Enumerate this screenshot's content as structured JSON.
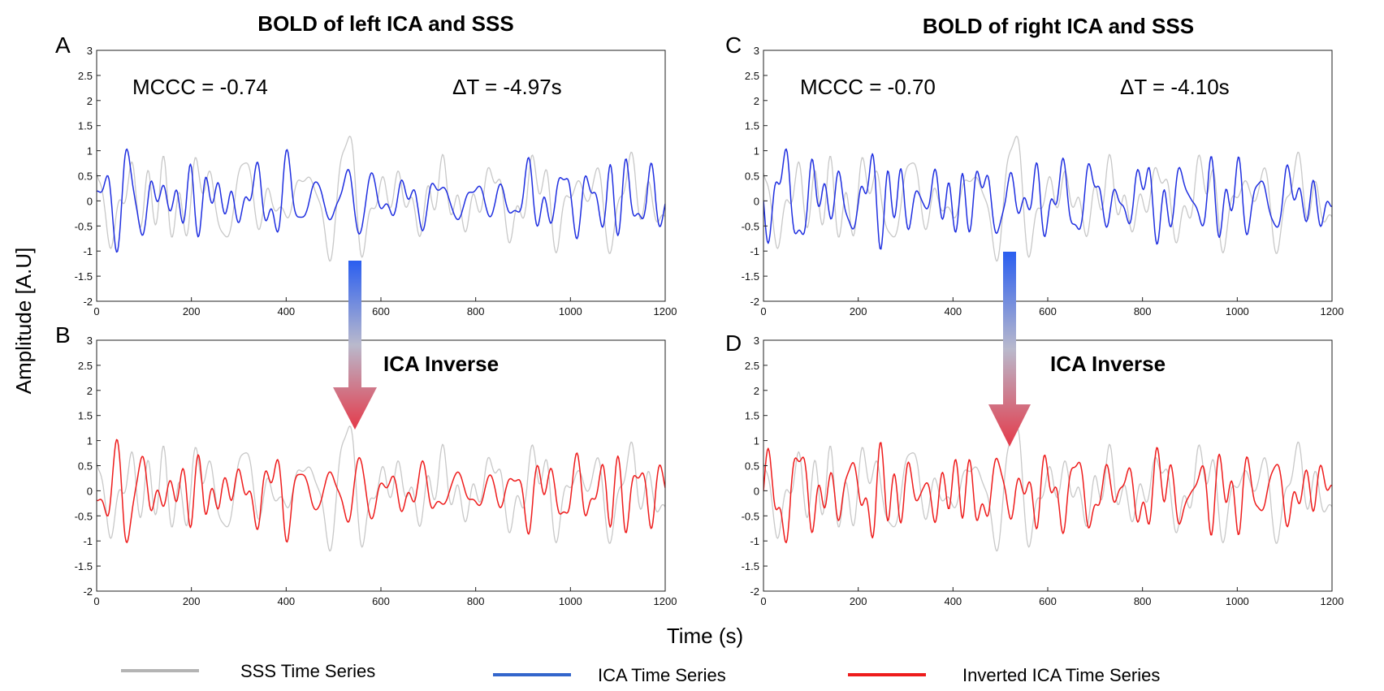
{
  "figure": {
    "ylabel": "Amplitude [A.U]",
    "xlabel": "Time (s)"
  },
  "colors": {
    "sss": "#c8c8c8",
    "ica": "#1f2fe0",
    "inverted": "#ee1c1c",
    "arrow_top": "#2a5ef0",
    "arrow_bottom": "#e43a4a"
  },
  "legend": [
    {
      "label": "SSS Time Series",
      "color": "#b4b4b4"
    },
    {
      "label": "ICA Time Series",
      "color": "#3366cc"
    },
    {
      "label": "Inverted ICA Time Series",
      "color": "#ee1c1c"
    }
  ],
  "arrows": [
    {
      "label": "ICA Inverse"
    },
    {
      "label": "ICA Inverse"
    }
  ],
  "chart_data": [
    {
      "panel": "A",
      "type": "line",
      "title": "BOLD of left ICA and SSS",
      "annotations": {
        "mccc": "MCCC = -0.74",
        "dt": "ΔT = -4.97s"
      },
      "xlim": [
        0,
        1200
      ],
      "ylim": [
        -2,
        3
      ],
      "xticks": [
        "0",
        "200",
        "400",
        "600",
        "800",
        "1000",
        "1200"
      ],
      "yticks": [
        "3",
        "2.5",
        "2",
        "1.5",
        "1",
        "0.5",
        "0",
        "-0.5",
        "-1",
        "-1.5",
        "-2"
      ],
      "series": [
        {
          "name": "SSS Time Series",
          "seed": 11,
          "peak": 1.0
        },
        {
          "name": "ICA Time Series",
          "seed": 23,
          "peak": 0.85
        }
      ]
    },
    {
      "panel": "B",
      "type": "line",
      "title": "",
      "xlim": [
        0,
        1200
      ],
      "ylim": [
        -2,
        3
      ],
      "xticks": [
        "0",
        "200",
        "400",
        "600",
        "800",
        "1000",
        "1200"
      ],
      "yticks": [
        "3",
        "2.5",
        "2",
        "1.5",
        "1",
        "0.5",
        "0",
        "-0.5",
        "-1",
        "-1.5",
        "-2"
      ],
      "series": [
        {
          "name": "SSS Time Series",
          "seed": 11,
          "peak": 1.0
        },
        {
          "name": "Inverted ICA Time Series",
          "seed": 23,
          "peak": 0.85,
          "invert": true
        }
      ]
    },
    {
      "panel": "C",
      "type": "line",
      "title": "BOLD of right ICA and SSS",
      "annotations": {
        "mccc": "MCCC = -0.70",
        "dt": "ΔT = -4.10s"
      },
      "xlim": [
        0,
        1200
      ],
      "ylim": [
        -2,
        3
      ],
      "xticks": [
        "0",
        "200",
        "400",
        "600",
        "800",
        "1000",
        "1200"
      ],
      "yticks": [
        "3",
        "2.5",
        "2",
        "1.5",
        "1",
        "0.5",
        "0",
        "-0.5",
        "-1",
        "-1.5",
        "-2"
      ],
      "series": [
        {
          "name": "SSS Time Series",
          "seed": 11,
          "peak": 1.0
        },
        {
          "name": "ICA Time Series",
          "seed": 37,
          "peak": 0.8
        }
      ]
    },
    {
      "panel": "D",
      "type": "line",
      "title": "",
      "xlim": [
        0,
        1200
      ],
      "ylim": [
        -2,
        3
      ],
      "xticks": [
        "0",
        "200",
        "400",
        "600",
        "800",
        "1000",
        "1200"
      ],
      "yticks": [
        "3",
        "2.5",
        "2",
        "1.5",
        "1",
        "0.5",
        "0",
        "-0.5",
        "-1",
        "-1.5",
        "-2"
      ],
      "series": [
        {
          "name": "SSS Time Series",
          "seed": 11,
          "peak": 1.0
        },
        {
          "name": "Inverted ICA Time Series",
          "seed": 37,
          "peak": 0.8,
          "invert": true
        }
      ]
    }
  ]
}
